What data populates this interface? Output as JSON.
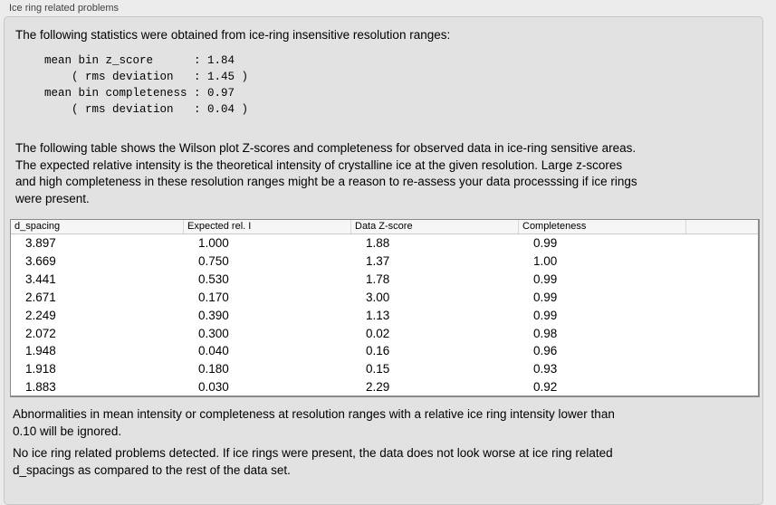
{
  "panel": {
    "title": "Ice ring related problems",
    "intro": "The following statistics were obtained from ice-ring insensitive resolution ranges:",
    "stats_block": "mean bin z_score      : 1.84\n    ( rms deviation   : 1.45 )\nmean bin completeness : 0.97\n    ( rms deviation   : 0.04 )",
    "stats": {
      "mean_bin_z_score": "1.84",
      "z_score_rms_deviation": "1.45",
      "mean_bin_completeness": "0.97",
      "completeness_rms_deviation": "0.04"
    },
    "table_description": "The following table shows the Wilson plot Z-scores and completeness for observed data in ice-ring sensitive areas.\nThe expected relative intensity is the theoretical intensity of crystalline ice at the given resolution. Large z-scores\nand high completeness in these resolution ranges might be a reason to re-assess your data processsing if ice rings\nwere present.",
    "note_ignore": "Abnormalities in mean intensity or completeness at resolution ranges with a relative ice ring intensity lower than\n0.10 will be ignored.",
    "conclusion": "No ice ring related problems detected. If ice rings were present, the data does not look worse at ice ring related\nd_spacings as compared to the rest of the data set."
  },
  "table": {
    "columns": [
      "d_spacing",
      "Expected rel. I",
      "Data Z-score",
      "Completeness",
      ""
    ],
    "rows": [
      [
        "3.897",
        "1.000",
        "1.88",
        "0.99"
      ],
      [
        "3.669",
        "0.750",
        "1.37",
        "1.00"
      ],
      [
        "3.441",
        "0.530",
        "1.78",
        "0.99"
      ],
      [
        "2.671",
        "0.170",
        "3.00",
        "0.99"
      ],
      [
        "2.249",
        "0.390",
        "1.13",
        "0.99"
      ],
      [
        "2.072",
        "0.300",
        "0.02",
        "0.98"
      ],
      [
        "1.948",
        "0.040",
        "0.16",
        "0.96"
      ],
      [
        "1.918",
        "0.180",
        "0.15",
        "0.93"
      ],
      [
        "1.883",
        "0.030",
        "2.29",
        "0.92"
      ]
    ]
  },
  "colors": {
    "page_background": "#ececec",
    "groupbox_background": "#e2e2e2",
    "groupbox_border": "#c6c6c6",
    "table_background": "#ffffff",
    "table_border": "#8a8a8a",
    "header_background": "#f6f6f6",
    "header_divider": "#d8d8d8",
    "text": "#000000",
    "label_text": "#3f3f3f"
  }
}
